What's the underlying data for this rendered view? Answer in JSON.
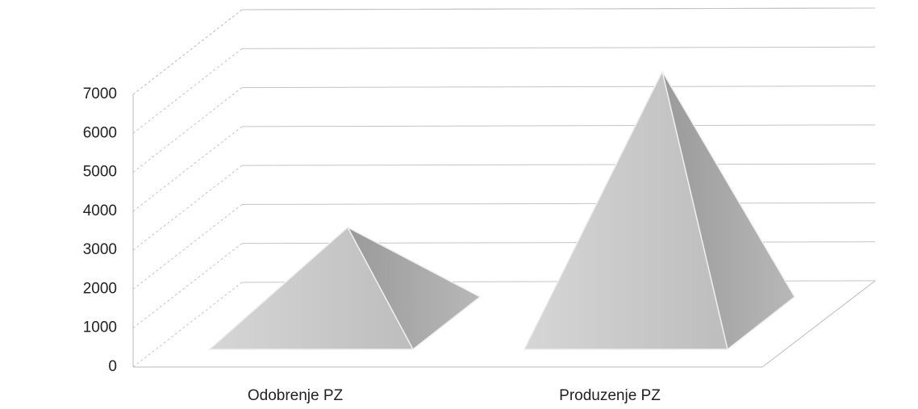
{
  "chart_data": {
    "type": "pyramid",
    "categories": [
      "Odobrenje PZ",
      "Produzenje PZ"
    ],
    "values": [
      2500,
      6500
    ],
    "color": "#c8c8c8",
    "ylim": [
      0,
      8000
    ],
    "yticks": [
      0,
      1000,
      2000,
      3000,
      4000,
      5000,
      6000,
      7000
    ],
    "grid": true
  }
}
